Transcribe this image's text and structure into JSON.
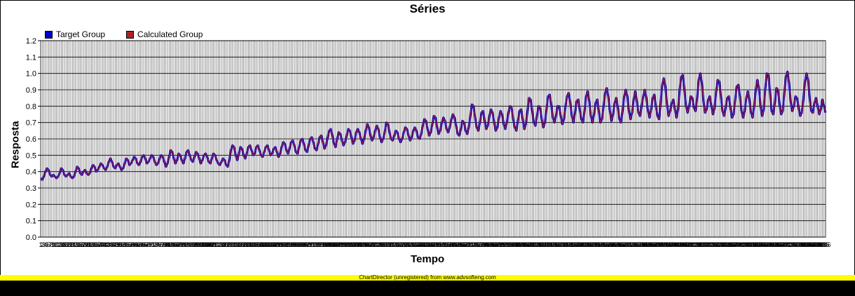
{
  "chart_data": {
    "type": "line",
    "title": "Séries",
    "xlabel": "Tempo",
    "ylabel": "Resposta",
    "ylim": [
      0,
      1.2
    ],
    "yticks": [
      "0.0",
      "0.1",
      "0.2",
      "0.3",
      "0.4",
      "0.5",
      "0.6",
      "0.7",
      "0.8",
      "0.9",
      "1.0",
      "1.1",
      "1.2"
    ],
    "grid": true,
    "legend_position": "top-left",
    "series": [
      {
        "name": "Target Group",
        "color": "#0000cc",
        "values": [
          0.36,
          0.35,
          0.37,
          0.4,
          0.42,
          0.41,
          0.38,
          0.37,
          0.38,
          0.37,
          0.36,
          0.37,
          0.39,
          0.42,
          0.41,
          0.38,
          0.37,
          0.38,
          0.39,
          0.37,
          0.36,
          0.37,
          0.4,
          0.43,
          0.42,
          0.39,
          0.38,
          0.4,
          0.41,
          0.39,
          0.38,
          0.39,
          0.42,
          0.44,
          0.43,
          0.4,
          0.41,
          0.43,
          0.45,
          0.44,
          0.42,
          0.41,
          0.43,
          0.46,
          0.48,
          0.46,
          0.43,
          0.42,
          0.44,
          0.45,
          0.43,
          0.41,
          0.42,
          0.45,
          0.48,
          0.47,
          0.44,
          0.45,
          0.47,
          0.49,
          0.48,
          0.45,
          0.44,
          0.46,
          0.49,
          0.5,
          0.48,
          0.45,
          0.46,
          0.48,
          0.5,
          0.49,
          0.46,
          0.44,
          0.45,
          0.48,
          0.5,
          0.49,
          0.46,
          0.43,
          0.45,
          0.49,
          0.53,
          0.52,
          0.48,
          0.45,
          0.47,
          0.51,
          0.5,
          0.47,
          0.45,
          0.48,
          0.52,
          0.53,
          0.5,
          0.47,
          0.46,
          0.49,
          0.52,
          0.51,
          0.48,
          0.45,
          0.47,
          0.5,
          0.51,
          0.49,
          0.46,
          0.45,
          0.48,
          0.51,
          0.5,
          0.47,
          0.45,
          0.44,
          0.46,
          0.48,
          0.47,
          0.44,
          0.43,
          0.47,
          0.53,
          0.56,
          0.55,
          0.5,
          0.47,
          0.51,
          0.55,
          0.54,
          0.5,
          0.48,
          0.51,
          0.55,
          0.56,
          0.53,
          0.5,
          0.51,
          0.55,
          0.56,
          0.53,
          0.5,
          0.49,
          0.52,
          0.55,
          0.56,
          0.53,
          0.5,
          0.51,
          0.54,
          0.55,
          0.52,
          0.49,
          0.51,
          0.55,
          0.58,
          0.57,
          0.53,
          0.51,
          0.54,
          0.58,
          0.59,
          0.56,
          0.52,
          0.51,
          0.55,
          0.59,
          0.6,
          0.57,
          0.53,
          0.52,
          0.56,
          0.6,
          0.61,
          0.58,
          0.54,
          0.53,
          0.57,
          0.61,
          0.62,
          0.58,
          0.54,
          0.56,
          0.61,
          0.65,
          0.66,
          0.62,
          0.57,
          0.55,
          0.6,
          0.64,
          0.63,
          0.59,
          0.56,
          0.58,
          0.62,
          0.66,
          0.65,
          0.61,
          0.57,
          0.59,
          0.64,
          0.66,
          0.64,
          0.6,
          0.57,
          0.6,
          0.65,
          0.69,
          0.67,
          0.62,
          0.59,
          0.61,
          0.65,
          0.68,
          0.66,
          0.61,
          0.58,
          0.6,
          0.64,
          0.7,
          0.69,
          0.64,
          0.6,
          0.59,
          0.62,
          0.65,
          0.64,
          0.6,
          0.58,
          0.6,
          0.64,
          0.67,
          0.66,
          0.62,
          0.59,
          0.61,
          0.65,
          0.67,
          0.65,
          0.61,
          0.6,
          0.63,
          0.68,
          0.72,
          0.71,
          0.66,
          0.62,
          0.64,
          0.69,
          0.74,
          0.73,
          0.67,
          0.63,
          0.65,
          0.7,
          0.73,
          0.71,
          0.66,
          0.64,
          0.67,
          0.72,
          0.75,
          0.73,
          0.68,
          0.63,
          0.62,
          0.66,
          0.71,
          0.7,
          0.65,
          0.63,
          0.67,
          0.74,
          0.81,
          0.8,
          0.73,
          0.67,
          0.65,
          0.7,
          0.76,
          0.77,
          0.71,
          0.66,
          0.68,
          0.74,
          0.78,
          0.76,
          0.7,
          0.65,
          0.67,
          0.73,
          0.77,
          0.75,
          0.69,
          0.66,
          0.7,
          0.76,
          0.8,
          0.79,
          0.72,
          0.67,
          0.65,
          0.71,
          0.77,
          0.78,
          0.72,
          0.66,
          0.69,
          0.77,
          0.85,
          0.84,
          0.77,
          0.7,
          0.68,
          0.74,
          0.8,
          0.79,
          0.72,
          0.67,
          0.7,
          0.78,
          0.86,
          0.87,
          0.81,
          0.73,
          0.7,
          0.74,
          0.8,
          0.8,
          0.74,
          0.69,
          0.72,
          0.8,
          0.86,
          0.88,
          0.82,
          0.74,
          0.7,
          0.76,
          0.83,
          0.84,
          0.78,
          0.72,
          0.7,
          0.77,
          0.86,
          0.89,
          0.83,
          0.74,
          0.7,
          0.75,
          0.82,
          0.84,
          0.77,
          0.7,
          0.72,
          0.8,
          0.88,
          0.91,
          0.86,
          0.77,
          0.71,
          0.75,
          0.82,
          0.85,
          0.79,
          0.72,
          0.7,
          0.77,
          0.86,
          0.9,
          0.86,
          0.77,
          0.72,
          0.76,
          0.84,
          0.89,
          0.83,
          0.76,
          0.74,
          0.8,
          0.86,
          0.9,
          0.85,
          0.77,
          0.73,
          0.78,
          0.85,
          0.87,
          0.8,
          0.74,
          0.72,
          0.82,
          0.93,
          0.97,
          0.92,
          0.81,
          0.74,
          0.77,
          0.82,
          0.84,
          0.78,
          0.73,
          0.78,
          0.9,
          0.98,
          0.99,
          0.9,
          0.8,
          0.76,
          0.8,
          0.86,
          0.85,
          0.79,
          0.77,
          0.85,
          0.96,
          1.0,
          0.94,
          0.83,
          0.76,
          0.78,
          0.84,
          0.86,
          0.8,
          0.75,
          0.79,
          0.89,
          0.96,
          0.95,
          0.86,
          0.77,
          0.74,
          0.79,
          0.85,
          0.86,
          0.79,
          0.73,
          0.75,
          0.84,
          0.92,
          0.93,
          0.86,
          0.77,
          0.73,
          0.77,
          0.85,
          0.89,
          0.84,
          0.76,
          0.73,
          0.8,
          0.9,
          0.96,
          0.91,
          0.8,
          0.74,
          0.78,
          0.91,
          1.0,
          0.99,
          0.88,
          0.77,
          0.75,
          0.82,
          0.91,
          0.9,
          0.81,
          0.75,
          0.77,
          0.88,
          0.98,
          1.01,
          0.94,
          0.83,
          0.77,
          0.8,
          0.86,
          0.85,
          0.79,
          0.74,
          0.76,
          0.84,
          0.95,
          1.0,
          0.96,
          0.85,
          0.77,
          0.76,
          0.82,
          0.85,
          0.8,
          0.75,
          0.78,
          0.84,
          0.8,
          0.76
        ]
      },
      {
        "name": "Calculated Group",
        "color": "#aa2222",
        "values": [
          0.36,
          0.35,
          0.37,
          0.4,
          0.42,
          0.41,
          0.38,
          0.37,
          0.38,
          0.37,
          0.36,
          0.37,
          0.39,
          0.42,
          0.41,
          0.38,
          0.37,
          0.38,
          0.39,
          0.37,
          0.36,
          0.37,
          0.4,
          0.43,
          0.42,
          0.39,
          0.38,
          0.4,
          0.41,
          0.39,
          0.38,
          0.39,
          0.42,
          0.44,
          0.43,
          0.4,
          0.41,
          0.43,
          0.45,
          0.44,
          0.42,
          0.41,
          0.43,
          0.46,
          0.48,
          0.46,
          0.43,
          0.42,
          0.44,
          0.45,
          0.43,
          0.41,
          0.42,
          0.45,
          0.48,
          0.47,
          0.44,
          0.45,
          0.47,
          0.49,
          0.48,
          0.45,
          0.44,
          0.46,
          0.49,
          0.5,
          0.48,
          0.45,
          0.46,
          0.48,
          0.5,
          0.49,
          0.46,
          0.44,
          0.45,
          0.48,
          0.5,
          0.49,
          0.46,
          0.43,
          0.45,
          0.49,
          0.53,
          0.52,
          0.48,
          0.45,
          0.47,
          0.51,
          0.5,
          0.47,
          0.45,
          0.48,
          0.52,
          0.53,
          0.5,
          0.47,
          0.46,
          0.49,
          0.52,
          0.51,
          0.48,
          0.45,
          0.47,
          0.5,
          0.51,
          0.49,
          0.46,
          0.45,
          0.48,
          0.51,
          0.5,
          0.47,
          0.45,
          0.44,
          0.46,
          0.48,
          0.47,
          0.44,
          0.43,
          0.47,
          0.53,
          0.56,
          0.55,
          0.5,
          0.47,
          0.51,
          0.55,
          0.54,
          0.5,
          0.48,
          0.51,
          0.55,
          0.56,
          0.53,
          0.5,
          0.51,
          0.55,
          0.56,
          0.53,
          0.5,
          0.49,
          0.52,
          0.55,
          0.56,
          0.53,
          0.5,
          0.51,
          0.54,
          0.55,
          0.52,
          0.49,
          0.51,
          0.55,
          0.58,
          0.57,
          0.53,
          0.51,
          0.54,
          0.58,
          0.59,
          0.56,
          0.52,
          0.51,
          0.55,
          0.59,
          0.6,
          0.57,
          0.53,
          0.52,
          0.56,
          0.6,
          0.61,
          0.58,
          0.54,
          0.53,
          0.57,
          0.61,
          0.62,
          0.58,
          0.54,
          0.56,
          0.61,
          0.65,
          0.66,
          0.62,
          0.57,
          0.55,
          0.6,
          0.64,
          0.63,
          0.59,
          0.56,
          0.58,
          0.62,
          0.66,
          0.65,
          0.61,
          0.57,
          0.59,
          0.64,
          0.66,
          0.64,
          0.6,
          0.57,
          0.6,
          0.65,
          0.69,
          0.67,
          0.62,
          0.59,
          0.61,
          0.65,
          0.68,
          0.66,
          0.61,
          0.58,
          0.6,
          0.64,
          0.7,
          0.69,
          0.64,
          0.6,
          0.59,
          0.62,
          0.65,
          0.64,
          0.6,
          0.58,
          0.6,
          0.64,
          0.67,
          0.66,
          0.62,
          0.59,
          0.61,
          0.65,
          0.67,
          0.65,
          0.61,
          0.6,
          0.63,
          0.68,
          0.72,
          0.71,
          0.66,
          0.62,
          0.64,
          0.69,
          0.74,
          0.73,
          0.67,
          0.63,
          0.65,
          0.7,
          0.73,
          0.71,
          0.66,
          0.64,
          0.67,
          0.72,
          0.75,
          0.73,
          0.68,
          0.63,
          0.62,
          0.66,
          0.71,
          0.7,
          0.65,
          0.63,
          0.67,
          0.74,
          0.81,
          0.8,
          0.73,
          0.67,
          0.65,
          0.7,
          0.76,
          0.77,
          0.71,
          0.66,
          0.68,
          0.74,
          0.78,
          0.76,
          0.7,
          0.65,
          0.67,
          0.73,
          0.77,
          0.75,
          0.69,
          0.66,
          0.7,
          0.76,
          0.8,
          0.79,
          0.72,
          0.67,
          0.65,
          0.71,
          0.77,
          0.78,
          0.72,
          0.66,
          0.69,
          0.77,
          0.85,
          0.84,
          0.77,
          0.7,
          0.68,
          0.74,
          0.8,
          0.79,
          0.72,
          0.67,
          0.7,
          0.78,
          0.86,
          0.87,
          0.81,
          0.73,
          0.7,
          0.74,
          0.8,
          0.8,
          0.74,
          0.69,
          0.72,
          0.8,
          0.86,
          0.88,
          0.82,
          0.74,
          0.7,
          0.76,
          0.83,
          0.84,
          0.78,
          0.72,
          0.7,
          0.77,
          0.86,
          0.89,
          0.83,
          0.74,
          0.7,
          0.75,
          0.82,
          0.84,
          0.77,
          0.7,
          0.72,
          0.8,
          0.88,
          0.91,
          0.86,
          0.77,
          0.71,
          0.75,
          0.82,
          0.85,
          0.79,
          0.72,
          0.7,
          0.77,
          0.86,
          0.9,
          0.86,
          0.77,
          0.72,
          0.76,
          0.84,
          0.89,
          0.83,
          0.76,
          0.74,
          0.8,
          0.86,
          0.9,
          0.85,
          0.77,
          0.73,
          0.78,
          0.85,
          0.87,
          0.8,
          0.74,
          0.72,
          0.82,
          0.93,
          0.97,
          0.92,
          0.81,
          0.74,
          0.77,
          0.82,
          0.84,
          0.78,
          0.73,
          0.78,
          0.9,
          0.98,
          0.99,
          0.9,
          0.8,
          0.76,
          0.8,
          0.86,
          0.85,
          0.79,
          0.77,
          0.85,
          0.96,
          1.0,
          0.94,
          0.83,
          0.76,
          0.78,
          0.84,
          0.86,
          0.8,
          0.75,
          0.79,
          0.89,
          0.96,
          0.95,
          0.86,
          0.77,
          0.74,
          0.79,
          0.85,
          0.86,
          0.79,
          0.73,
          0.75,
          0.84,
          0.92,
          0.93,
          0.86,
          0.77,
          0.73,
          0.77,
          0.85,
          0.89,
          0.84,
          0.76,
          0.73,
          0.8,
          0.9,
          0.96,
          0.91,
          0.8,
          0.74,
          0.78,
          0.91,
          1.0,
          0.99,
          0.88,
          0.77,
          0.75,
          0.82,
          0.91,
          0.9,
          0.81,
          0.75,
          0.77,
          0.88,
          0.98,
          1.01,
          0.94,
          0.83,
          0.77,
          0.8,
          0.86,
          0.85,
          0.79,
          0.74,
          0.76,
          0.84,
          0.95,
          1.0,
          0.96,
          0.85,
          0.77,
          0.76,
          0.82,
          0.85,
          0.8,
          0.75,
          0.78,
          0.84,
          0.8,
          0.76
        ]
      }
    ]
  },
  "footer": {
    "text": "ChartDirector (unregistered) from www.advsofteng.com"
  }
}
